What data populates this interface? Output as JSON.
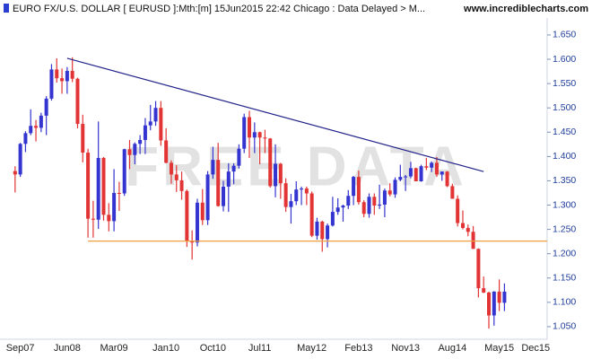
{
  "chart_data": {
    "type": "candlestick",
    "title": "EURO FX/U.S. DOLLAR [ EURUSD ]:Mth:[m]  15Jun2015 22:42 Chicago : Data Delayed > M...",
    "source": "www.incrediblecharts.com",
    "watermark": "FREE DATA",
    "up_color": "#3434d0",
    "down_color": "#e23434",
    "categories": [
      null,
      "Sep07",
      null,
      null,
      null,
      null,
      null,
      null,
      null,
      null,
      "Jun08",
      null,
      null,
      null,
      null,
      null,
      null,
      null,
      null,
      "Mar09",
      null,
      null,
      null,
      null,
      null,
      null,
      null,
      null,
      null,
      "Jan10",
      null,
      null,
      null,
      null,
      null,
      null,
      null,
      null,
      "Oct10",
      null,
      null,
      null,
      null,
      null,
      null,
      null,
      null,
      "Jul11",
      null,
      null,
      null,
      null,
      null,
      null,
      null,
      null,
      null,
      "May12",
      null,
      null,
      null,
      null,
      null,
      null,
      null,
      null,
      "Feb13",
      null,
      null,
      null,
      null,
      null,
      null,
      null,
      null,
      "Nov13",
      null,
      null,
      null,
      null,
      null,
      null,
      null,
      null,
      "Aug14",
      null,
      null,
      null,
      null,
      null,
      null,
      null,
      null,
      "May15",
      null,
      null,
      null,
      null,
      null,
      null,
      "Dec15"
    ],
    "open": [
      1.37,
      1.363,
      1.426,
      1.448,
      1.463,
      1.459,
      1.484,
      1.519,
      1.579,
      1.561,
      1.555,
      1.576,
      1.56,
      1.467,
      1.408,
      1.272,
      1.27,
      1.397,
      1.28,
      1.267,
      1.325,
      1.324,
      1.415,
      1.403,
      1.426,
      1.434,
      1.464,
      1.472,
      1.5,
      1.433,
      1.387,
      1.363,
      1.351,
      1.329,
      1.227,
      1.223,
      1.305,
      1.269,
      1.363,
      1.393,
      1.298,
      1.338,
      1.369,
      1.381,
      1.416,
      1.481,
      1.439,
      1.45,
      1.439,
      1.437,
      1.339,
      1.385,
      1.345,
      1.296,
      1.308,
      1.332,
      1.334,
      1.324,
      1.237,
      1.266,
      1.23,
      1.258,
      1.286,
      1.295,
      1.299,
      1.319,
      1.358,
      1.306,
      1.282,
      1.317,
      1.299,
      1.301,
      1.33,
      1.322,
      1.352,
      1.358,
      1.359,
      1.376,
      1.349,
      1.38,
      1.377,
      1.387,
      1.363,
      1.369,
      1.339,
      1.313,
      1.263,
      1.253,
      1.245,
      1.21,
      1.129,
      1.12,
      1.073,
      1.122,
      1.099,
      null,
      null,
      null,
      null,
      null,
      null
    ],
    "high": [
      1.38,
      1.428,
      1.452,
      1.497,
      1.475,
      1.49,
      1.524,
      1.59,
      1.602,
      1.581,
      1.584,
      1.604,
      1.562,
      1.486,
      1.416,
      1.309,
      1.472,
      1.399,
      1.304,
      1.374,
      1.348,
      1.416,
      1.434,
      1.429,
      1.444,
      1.479,
      1.506,
      1.514,
      1.514,
      1.458,
      1.392,
      1.382,
      1.369,
      1.332,
      1.248,
      1.313,
      1.333,
      1.37,
      1.42,
      1.428,
      1.35,
      1.386,
      1.386,
      1.425,
      1.488,
      1.494,
      1.47,
      1.451,
      1.455,
      1.438,
      1.425,
      1.387,
      1.355,
      1.323,
      1.349,
      1.338,
      1.338,
      1.328,
      1.274,
      1.268,
      1.262,
      1.317,
      1.314,
      1.301,
      1.331,
      1.36,
      1.371,
      1.31,
      1.324,
      1.324,
      1.342,
      1.334,
      1.345,
      1.357,
      1.383,
      1.362,
      1.389,
      1.377,
      1.383,
      1.397,
      1.39,
      1.399,
      1.369,
      1.37,
      1.344,
      1.32,
      1.289,
      1.26,
      1.257,
      1.211,
      1.153,
      1.122,
      1.123,
      1.147,
      1.139,
      null,
      null,
      null,
      null,
      null,
      null
    ],
    "low": [
      1.326,
      1.358,
      1.409,
      1.444,
      1.431,
      1.45,
      1.444,
      1.515,
      1.552,
      1.529,
      1.529,
      1.553,
      1.458,
      1.388,
      1.233,
      1.233,
      1.251,
      1.268,
      1.246,
      1.246,
      1.288,
      1.319,
      1.374,
      1.384,
      1.405,
      1.405,
      1.454,
      1.463,
      1.422,
      1.386,
      1.344,
      1.327,
      1.311,
      1.214,
      1.188,
      1.215,
      1.259,
      1.259,
      1.354,
      1.297,
      1.287,
      1.286,
      1.343,
      1.375,
      1.407,
      1.397,
      1.407,
      1.384,
      1.407,
      1.336,
      1.316,
      1.313,
      1.286,
      1.262,
      1.3,
      1.3,
      1.3,
      1.234,
      1.229,
      1.204,
      1.213,
      1.256,
      1.28,
      1.266,
      1.292,
      1.3,
      1.301,
      1.275,
      1.274,
      1.28,
      1.292,
      1.275,
      1.318,
      1.315,
      1.349,
      1.329,
      1.355,
      1.349,
      1.348,
      1.372,
      1.368,
      1.358,
      1.35,
      1.337,
      1.313,
      1.256,
      1.25,
      1.236,
      1.21,
      1.11,
      1.119,
      1.046,
      1.052,
      1.082,
      1.082,
      null,
      null,
      null,
      null,
      null,
      null
    ],
    "close": [
      1.363,
      1.426,
      1.448,
      1.463,
      1.459,
      1.484,
      1.519,
      1.579,
      1.561,
      1.555,
      1.576,
      1.56,
      1.467,
      1.408,
      1.272,
      1.27,
      1.397,
      1.28,
      1.267,
      1.325,
      1.324,
      1.415,
      1.403,
      1.426,
      1.434,
      1.464,
      1.472,
      1.5,
      1.433,
      1.387,
      1.363,
      1.351,
      1.329,
      1.227,
      1.223,
      1.305,
      1.269,
      1.363,
      1.393,
      1.298,
      1.338,
      1.369,
      1.381,
      1.416,
      1.481,
      1.439,
      1.45,
      1.439,
      1.437,
      1.339,
      1.385,
      1.345,
      1.296,
      1.308,
      1.332,
      1.334,
      1.324,
      1.237,
      1.266,
      1.23,
      1.258,
      1.286,
      1.295,
      1.299,
      1.319,
      1.358,
      1.306,
      1.282,
      1.317,
      1.299,
      1.301,
      1.33,
      1.322,
      1.352,
      1.358,
      1.359,
      1.376,
      1.349,
      1.38,
      1.377,
      1.387,
      1.363,
      1.369,
      1.339,
      1.313,
      1.263,
      1.253,
      1.245,
      1.21,
      1.129,
      1.12,
      1.073,
      1.122,
      1.099,
      1.122,
      null,
      null,
      null,
      null,
      null,
      null
    ],
    "lines": [
      {
        "color": "#23238a",
        "x": [
          10,
          90
        ],
        "values": [
          1.602,
          1.369
        ]
      },
      {
        "color": "#f0a040",
        "x": [
          14,
          102.2
        ],
        "values": [
          1.226,
          1.226
        ]
      }
    ],
    "xlim": [
      -2.9,
      102.2
    ],
    "ylim": [
      1.024,
      1.685
    ],
    "yticks": [
      {
        "value": 1.05,
        "label": "1.050"
      },
      {
        "value": 1.1,
        "label": "1.100"
      },
      {
        "value": 1.15,
        "label": "1.150"
      },
      {
        "value": 1.2,
        "label": "1.200"
      },
      {
        "value": 1.25,
        "label": "1.250"
      },
      {
        "value": 1.3,
        "label": "1.300"
      },
      {
        "value": 1.35,
        "label": "1.350"
      },
      {
        "value": 1.4,
        "label": "1.400"
      },
      {
        "value": 1.45,
        "label": "1.450"
      },
      {
        "value": 1.5,
        "label": "1.500"
      },
      {
        "value": 1.55,
        "label": "1.550"
      },
      {
        "value": 1.6,
        "label": "1.600"
      },
      {
        "value": 1.65,
        "label": "1.650"
      }
    ]
  }
}
